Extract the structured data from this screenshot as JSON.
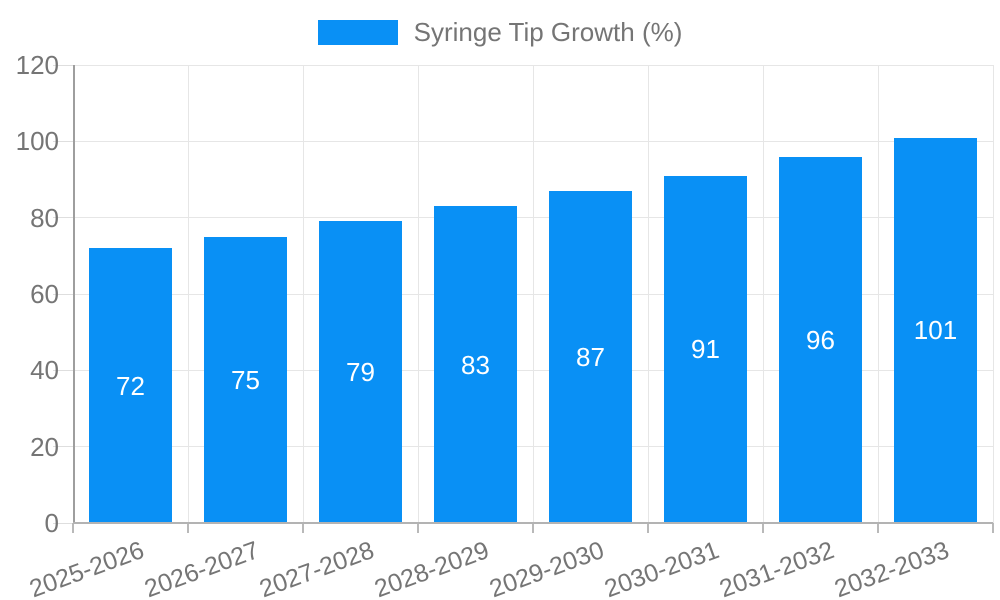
{
  "legend": {
    "label": "Syringe Tip Growth (%)",
    "swatch_color": "#0990f5"
  },
  "chart_data": {
    "type": "bar",
    "title": "Syringe Tip Growth (%)",
    "categories": [
      "2025-2026",
      "2026-2027",
      "2027-2028",
      "2028-2029",
      "2029-2030",
      "2030-2031",
      "2031-2032",
      "2032-2033"
    ],
    "values": [
      72,
      75,
      79,
      83,
      87,
      91,
      96,
      101
    ],
    "xlabel": "",
    "ylabel": "",
    "ylim": [
      0,
      120
    ],
    "yticks": [
      0,
      20,
      40,
      60,
      80,
      100,
      120
    ],
    "grid": true,
    "legend_position": "top",
    "x_label_rotation_deg": -20,
    "colors": {
      "bar": "#0990f5",
      "bar_value_text": "#ffffff",
      "axis_text": "#757575",
      "gridline": "#e6e6e6",
      "y_axis_line": "#9e9e9e",
      "x_axis_line": "#b3b3b3"
    }
  }
}
